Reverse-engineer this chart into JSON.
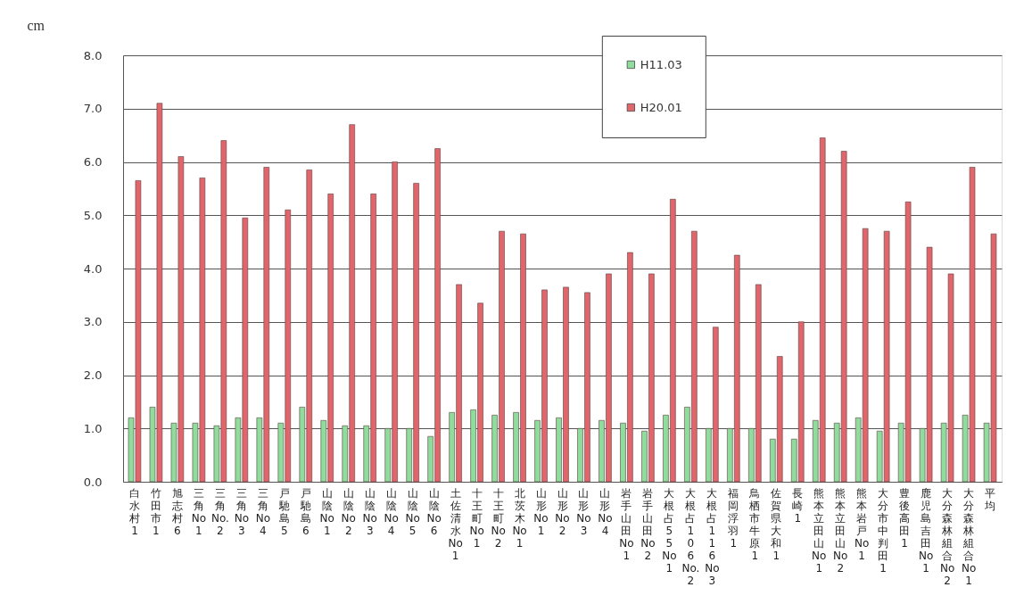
{
  "chart_data": {
    "type": "bar",
    "ylabel": "cm",
    "categories": [
      "白水村 1",
      "竹田市 1",
      "旭志村 6",
      "三角 No 1",
      "三角 No. 2",
      "三角 No 3",
      "三角 No 4",
      "戸馳島 5",
      "戸馳島 6",
      "山陰 No 1",
      "山陰 No 2",
      "山陰 No 3",
      "山陰 No 4",
      "山陰 No 5",
      "山陰 No 6",
      "土佐清水 No 1",
      "十王町 No 1",
      "十王町 No 2",
      "北茨木 No 1",
      "山形 No 1",
      "山形 No 2",
      "山形 No 3",
      "山形 No 4",
      "岩手山田 No 1",
      "岩手山田 No 2",
      "大根占 55 No 1",
      "大根占 106 No. 2",
      "大根占 116 No 3",
      "福岡浮羽 1",
      "鳥栖市牛原 1",
      "佐賀県大和 1",
      "長崎 1",
      "熊本立田山 No 1",
      "熊本立田山 No 2",
      "熊本岩戸 No 1",
      "大分市中判田 1",
      "豊後高田 1",
      "鹿児島吉田 No 1",
      "大分森林組合 No 2",
      "大分森林組合 No 1",
      "平均"
    ],
    "series": [
      {
        "name": "H11.03",
        "color": "#8fdc9c",
        "values": [
          1.2,
          1.4,
          1.1,
          1.1,
          1.05,
          1.2,
          1.2,
          1.1,
          1.4,
          1.15,
          1.05,
          1.05,
          1.0,
          1.0,
          0.85,
          1.3,
          1.35,
          1.25,
          1.3,
          1.15,
          1.2,
          1.0,
          1.15,
          1.1,
          0.95,
          1.25,
          1.4,
          1.0,
          1.0,
          1.0,
          0.8,
          0.8,
          1.15,
          1.1,
          1.2,
          0.95,
          1.1,
          1.0,
          1.1,
          1.25,
          1.1
        ]
      },
      {
        "name": "H20.01",
        "color": "#e0666c",
        "values": [
          5.65,
          7.1,
          6.1,
          5.7,
          6.4,
          4.95,
          5.9,
          5.1,
          5.85,
          5.4,
          6.7,
          5.4,
          6.0,
          5.6,
          6.25,
          3.7,
          3.35,
          4.7,
          4.65,
          3.6,
          3.65,
          3.55,
          3.9,
          4.3,
          3.9,
          5.3,
          4.7,
          2.9,
          4.25,
          3.7,
          2.35,
          3.0,
          6.45,
          6.2,
          4.75,
          4.7,
          5.25,
          4.4,
          3.9,
          5.9,
          4.65
        ]
      }
    ],
    "ylim": [
      0,
      8
    ],
    "yticks": [
      {
        "value": 0,
        "label": "0.0"
      },
      {
        "value": 1,
        "label": "1.0"
      },
      {
        "value": 2,
        "label": "2.0"
      },
      {
        "value": 3,
        "label": "3.0"
      },
      {
        "value": 4,
        "label": "4.0"
      },
      {
        "value": 5,
        "label": "5.0"
      },
      {
        "value": 6,
        "label": "6.0"
      },
      {
        "value": 7,
        "label": "7.0"
      },
      {
        "value": 8,
        "label": "8.0"
      }
    ],
    "grid": "y",
    "legend": "top"
  }
}
